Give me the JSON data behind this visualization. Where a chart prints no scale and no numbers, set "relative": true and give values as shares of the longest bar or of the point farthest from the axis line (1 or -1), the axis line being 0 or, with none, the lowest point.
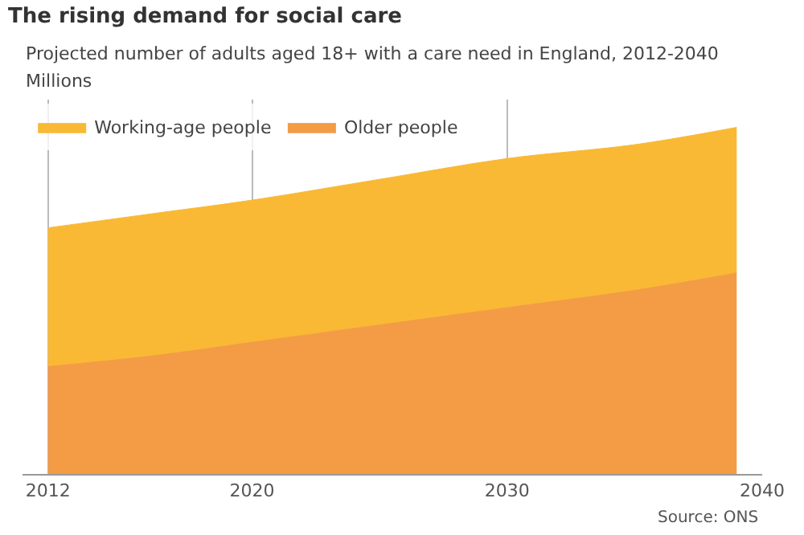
{
  "chart_data": {
    "type": "area",
    "title": "The rising demand for social care",
    "subtitle": "Projected number of adults aged 18+ with a care need in England, 2012-2040",
    "ylabel": "Millions",
    "annotations": [
      "Source: ONS"
    ],
    "x": [
      2012,
      2016,
      2020,
      2025,
      2030,
      2035,
      2039
    ],
    "series": [
      {
        "name": "Older people",
        "color": "#f39b45",
        "values": [
          0.31,
          0.34,
          0.38,
          0.43,
          0.48,
          0.53,
          0.58
        ]
      },
      {
        "name": "Working-age people",
        "color": "#f9b935",
        "values": [
          0.4,
          0.41,
          0.41,
          0.42,
          0.43,
          0.42,
          0.42
        ]
      }
    ],
    "stacked": true,
    "relative": true,
    "xlim": [
      2011,
      2040
    ],
    "xticks": [
      2012,
      2020,
      2030,
      2040
    ],
    "grid": "x",
    "legend": "top left"
  }
}
